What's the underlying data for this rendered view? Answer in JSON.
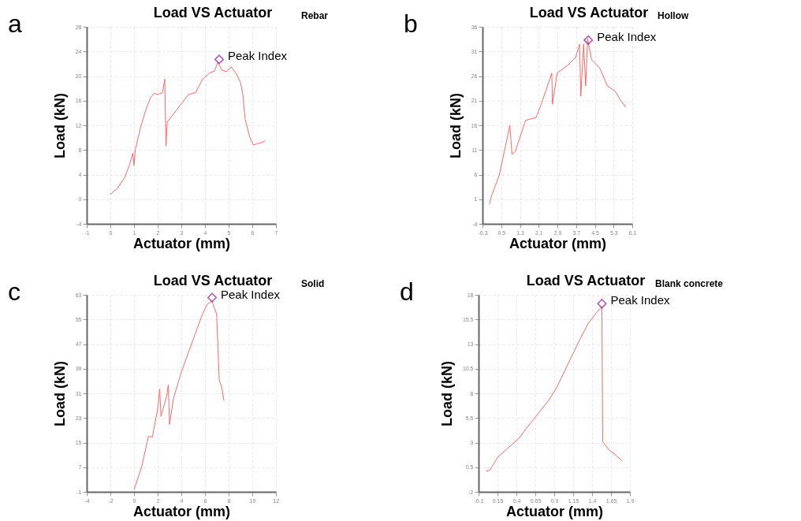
{
  "chart_data": [
    {
      "type": "line",
      "title": "Load VS Actuator",
      "xlabel": "Actuator (mm)",
      "ylabel": "Load (kN)",
      "xlim": [
        -1,
        7
      ],
      "xticks": [
        -1,
        0,
        1,
        2,
        3,
        4,
        5,
        6,
        7
      ],
      "ylim": [
        -4,
        28
      ],
      "yticks": [
        -4,
        0,
        4,
        8,
        12,
        16,
        20,
        24,
        28
      ],
      "grid": true,
      "series": [
        {
          "color": "#ff6666",
          "x": [
            0,
            0.3,
            0.6,
            0.8,
            0.95,
            1.0,
            1.05,
            1.3,
            1.5,
            1.7,
            1.85,
            2.0,
            2.2,
            2.3,
            2.35,
            2.4,
            2.6,
            3.0,
            3.3,
            3.6,
            3.9,
            4.2,
            4.4,
            4.55,
            4.7,
            4.9,
            5.1,
            5.3,
            5.5,
            5.6,
            5.7,
            5.8,
            5.9,
            6.05,
            6.2,
            6.4,
            6.55
          ],
          "values": [
            0.8,
            1.8,
            3.5,
            5.5,
            7.5,
            5.5,
            8,
            12,
            14.5,
            16.5,
            17.2,
            17,
            17.3,
            19.5,
            8.6,
            12.5,
            13.5,
            15.5,
            17,
            17.3,
            19.5,
            20.5,
            20.8,
            22.3,
            21,
            20.7,
            21.5,
            20.5,
            19,
            17,
            13,
            11.5,
            10,
            8.8,
            9,
            9.2,
            9.5
          ]
        },
        {
          "type": "scatter",
          "marker": "diamond",
          "color": "#8b1a8b",
          "x": [
            4.6
          ],
          "values": [
            22.7
          ]
        }
      ],
      "annotations": [
        "a",
        "Rebar",
        {
          "text": "Peak Index",
          "x": 4.6,
          "y": 22.7
        }
      ]
    },
    {
      "type": "line",
      "title": "Load VS Actuator",
      "xlabel": "Actuator (mm)",
      "ylabel": "Load (kN)",
      "xlim": [
        -0.3,
        6.1
      ],
      "xticks": [
        -0.3,
        0.5,
        1.3,
        2.1,
        2.9,
        3.7,
        4.5,
        5.3,
        6.1
      ],
      "ylim": [
        -4,
        36
      ],
      "yticks": [
        -4,
        1,
        6,
        11,
        16,
        21,
        26,
        31,
        36
      ],
      "grid": true,
      "series": [
        {
          "color": "#ff6666",
          "x": [
            0,
            0.08,
            0.42,
            0.87,
            0.96,
            1.1,
            1.54,
            1.99,
            2.21,
            2.66,
            2.69,
            2.89,
            3.34,
            3.68,
            3.85,
            3.9,
            4.02,
            4.11,
            4.19,
            4.36,
            4.7,
            5.04,
            5.37,
            5.6,
            5.82
          ],
          "values": [
            0,
            1.6,
            5.9,
            16,
            10.1,
            10.7,
            17,
            17.6,
            20.3,
            26.6,
            20.3,
            26.6,
            28.2,
            29.8,
            32.5,
            21.9,
            32.5,
            24,
            33.6,
            29.3,
            27.7,
            24,
            22.9,
            21.1,
            19.7
          ]
        },
        {
          "type": "scatter",
          "marker": "diamond",
          "color": "#8b1a8b",
          "x": [
            4.22
          ],
          "values": [
            33.3
          ]
        }
      ],
      "annotations": [
        "b",
        "Hollow",
        {
          "text": "Peak Index",
          "x": 4.22,
          "y": 33.3
        }
      ]
    },
    {
      "type": "line",
      "title": "Load VS Actuator",
      "xlabel": "Actuator (mm)",
      "ylabel": "Load (kN)",
      "xlim": [
        -4,
        12
      ],
      "xticks": [
        -4,
        -2,
        0,
        2,
        4,
        6,
        8,
        10,
        12
      ],
      "ylim": [
        -1,
        63
      ],
      "yticks": [
        -1,
        7,
        15,
        23,
        31,
        39,
        47,
        55,
        63
      ],
      "grid": true,
      "series": [
        {
          "color": "#ff6666",
          "x": [
            0,
            0.66,
            1.1,
            1.22,
            1.55,
            2.0,
            2.17,
            2.28,
            2.77,
            2.9,
            3.0,
            3.34,
            4.0,
            4.89,
            5.77,
            6.2,
            6.6,
            6.99,
            7.1,
            7.2,
            7.43,
            7.6
          ],
          "values": [
            -0.3,
            7.3,
            15,
            17,
            16.8,
            26,
            32.4,
            23.5,
            30.3,
            33.7,
            20.9,
            29.4,
            37.9,
            47.3,
            56.6,
            60,
            60.9,
            56.6,
            45.5,
            35.4,
            32.8,
            28.6
          ]
        },
        {
          "type": "scatter",
          "marker": "diamond",
          "color": "#8b1a8b",
          "x": [
            6.6
          ],
          "values": [
            62.1
          ]
        }
      ],
      "annotations": [
        "c",
        "Solid",
        {
          "text": "Peak Index",
          "x": 6.6,
          "y": 62.1
        }
      ]
    },
    {
      "type": "line",
      "title": "Load VS Actuator",
      "xlabel": "Actuator (mm)",
      "ylabel": "Load (kN)",
      "xlim": [
        -0.1,
        1.9
      ],
      "xticks": [
        -0.1,
        0.15,
        0.4,
        0.65,
        0.9,
        1.15,
        1.4,
        1.65,
        1.9
      ],
      "ylim": [
        -2,
        18
      ],
      "yticks": [
        -2,
        0.5,
        3,
        5.5,
        8,
        10.5,
        13,
        15.5,
        18
      ],
      "grid": true,
      "series": [
        {
          "color": "#ff6666",
          "x": [
            0.0,
            0.05,
            0.155,
            0.29,
            0.43,
            0.56,
            0.7,
            0.835,
            0.94,
            1.04,
            1.14,
            1.24,
            1.35,
            1.45,
            1.53,
            1.54,
            1.62,
            1.72,
            1.8
          ],
          "values": [
            0.07,
            0.2,
            1.53,
            2.46,
            3.39,
            4.72,
            6.05,
            7.38,
            8.7,
            10.3,
            11.9,
            13.5,
            15.1,
            16.1,
            16.8,
            3.1,
            2.3,
            1.67,
            1.13
          ]
        },
        {
          "type": "scatter",
          "marker": "diamond",
          "color": "#8b1a8b",
          "x": [
            1.53
          ],
          "values": [
            17.1
          ]
        }
      ],
      "annotations": [
        "d",
        "Blank concrete",
        {
          "text": "Peak Index",
          "x": 1.53,
          "y": 17.1
        }
      ]
    }
  ]
}
